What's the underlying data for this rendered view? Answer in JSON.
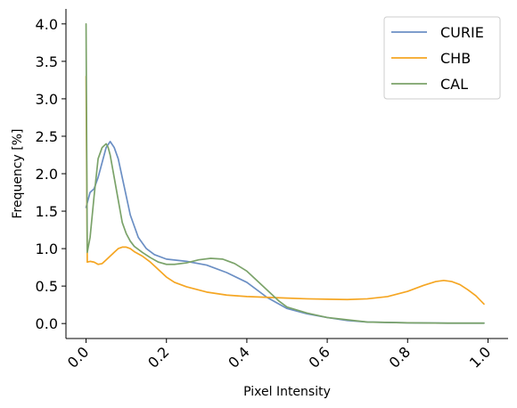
{
  "chart_data": {
    "type": "line",
    "xlabel": "Pixel Intensity",
    "ylabel": "Frequency [%]",
    "xlim": [
      -0.05,
      1.05
    ],
    "ylim": [
      -0.2,
      4.2
    ],
    "x_ticks": [
      "0.0",
      "0.2",
      "0.4",
      "0.6",
      "0.8",
      "1.0"
    ],
    "y_ticks": [
      "0.0",
      "0.5",
      "1.0",
      "1.5",
      "2.0",
      "2.5",
      "3.0",
      "3.5",
      "4.0"
    ],
    "legend_position": "top-right",
    "grid": false,
    "series": [
      {
        "name": "CURIE",
        "color": "#6b8fc4",
        "points": [
          [
            0.0,
            1.55
          ],
          [
            0.005,
            1.65
          ],
          [
            0.01,
            1.75
          ],
          [
            0.02,
            1.8
          ],
          [
            0.03,
            1.95
          ],
          [
            0.04,
            2.15
          ],
          [
            0.05,
            2.35
          ],
          [
            0.06,
            2.43
          ],
          [
            0.07,
            2.35
          ],
          [
            0.08,
            2.2
          ],
          [
            0.09,
            1.95
          ],
          [
            0.1,
            1.7
          ],
          [
            0.11,
            1.45
          ],
          [
            0.12,
            1.3
          ],
          [
            0.13,
            1.15
          ],
          [
            0.15,
            1.0
          ],
          [
            0.17,
            0.92
          ],
          [
            0.2,
            0.86
          ],
          [
            0.25,
            0.83
          ],
          [
            0.3,
            0.78
          ],
          [
            0.35,
            0.68
          ],
          [
            0.4,
            0.55
          ],
          [
            0.45,
            0.35
          ],
          [
            0.5,
            0.2
          ],
          [
            0.55,
            0.13
          ],
          [
            0.6,
            0.08
          ],
          [
            0.65,
            0.04
          ],
          [
            0.7,
            0.02
          ],
          [
            0.8,
            0.01
          ],
          [
            0.9,
            0.005
          ],
          [
            0.99,
            0.005
          ]
        ]
      },
      {
        "name": "CHB",
        "color": "#f5a623",
        "points": [
          [
            0.0,
            3.3
          ],
          [
            0.003,
            0.82
          ],
          [
            0.01,
            0.83
          ],
          [
            0.02,
            0.82
          ],
          [
            0.03,
            0.79
          ],
          [
            0.04,
            0.8
          ],
          [
            0.05,
            0.85
          ],
          [
            0.06,
            0.9
          ],
          [
            0.07,
            0.95
          ],
          [
            0.08,
            1.0
          ],
          [
            0.09,
            1.02
          ],
          [
            0.1,
            1.02
          ],
          [
            0.11,
            1.0
          ],
          [
            0.12,
            0.96
          ],
          [
            0.14,
            0.9
          ],
          [
            0.16,
            0.82
          ],
          [
            0.18,
            0.72
          ],
          [
            0.2,
            0.62
          ],
          [
            0.22,
            0.55
          ],
          [
            0.25,
            0.49
          ],
          [
            0.3,
            0.42
          ],
          [
            0.35,
            0.38
          ],
          [
            0.4,
            0.36
          ],
          [
            0.45,
            0.35
          ],
          [
            0.5,
            0.34
          ],
          [
            0.55,
            0.33
          ],
          [
            0.6,
            0.325
          ],
          [
            0.65,
            0.32
          ],
          [
            0.7,
            0.33
          ],
          [
            0.75,
            0.36
          ],
          [
            0.8,
            0.43
          ],
          [
            0.84,
            0.51
          ],
          [
            0.87,
            0.56
          ],
          [
            0.89,
            0.575
          ],
          [
            0.91,
            0.56
          ],
          [
            0.93,
            0.52
          ],
          [
            0.95,
            0.45
          ],
          [
            0.97,
            0.37
          ],
          [
            0.99,
            0.26
          ]
        ]
      },
      {
        "name": "CAL",
        "color": "#7ba36a",
        "points": [
          [
            0.0,
            4.0
          ],
          [
            0.003,
            0.95
          ],
          [
            0.01,
            1.15
          ],
          [
            0.02,
            1.7
          ],
          [
            0.03,
            2.2
          ],
          [
            0.04,
            2.35
          ],
          [
            0.05,
            2.4
          ],
          [
            0.055,
            2.35
          ],
          [
            0.06,
            2.25
          ],
          [
            0.07,
            1.95
          ],
          [
            0.08,
            1.65
          ],
          [
            0.09,
            1.35
          ],
          [
            0.1,
            1.2
          ],
          [
            0.11,
            1.1
          ],
          [
            0.12,
            1.03
          ],
          [
            0.14,
            0.95
          ],
          [
            0.16,
            0.88
          ],
          [
            0.18,
            0.82
          ],
          [
            0.2,
            0.79
          ],
          [
            0.22,
            0.79
          ],
          [
            0.25,
            0.81
          ],
          [
            0.28,
            0.85
          ],
          [
            0.31,
            0.87
          ],
          [
            0.34,
            0.86
          ],
          [
            0.37,
            0.8
          ],
          [
            0.4,
            0.7
          ],
          [
            0.42,
            0.6
          ],
          [
            0.45,
            0.45
          ],
          [
            0.48,
            0.3
          ],
          [
            0.5,
            0.22
          ],
          [
            0.55,
            0.14
          ],
          [
            0.6,
            0.08
          ],
          [
            0.65,
            0.05
          ],
          [
            0.7,
            0.02
          ],
          [
            0.8,
            0.01
          ],
          [
            0.9,
            0.005
          ],
          [
            0.99,
            0.005
          ]
        ]
      }
    ]
  }
}
